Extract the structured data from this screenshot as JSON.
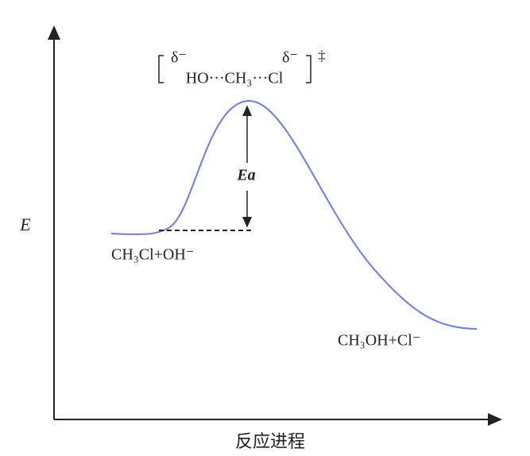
{
  "axes": {
    "y_label": "E",
    "x_label": "反应进程"
  },
  "transition_state": {
    "left_charge": "δ⁻",
    "formula": "HO···CH₃···Cl",
    "right_charge": "δ⁻",
    "symbol": "‡"
  },
  "activation_energy": "Ea",
  "reactants": "CH₃Cl+OH⁻",
  "products": "CH₃OH+Cl⁻"
}
